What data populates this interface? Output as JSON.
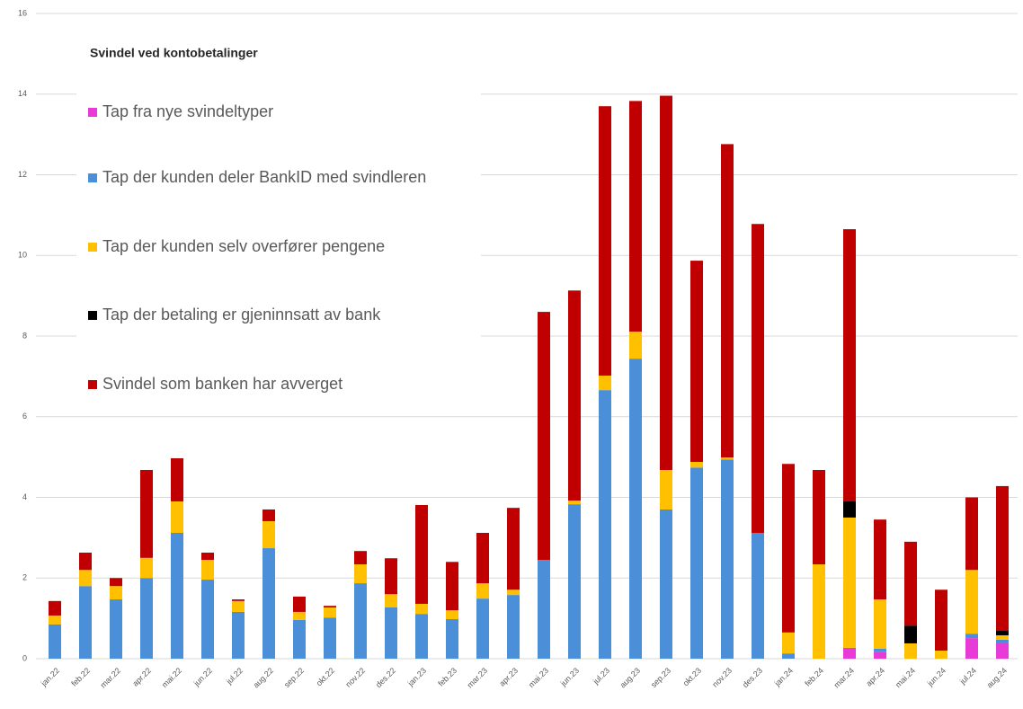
{
  "chart_data": {
    "type": "stacked_bar",
    "title": "Svindel ved kontobetalinger",
    "categories": [
      "jan.22",
      "feb.22",
      "mar.22",
      "apr.22",
      "mai.22",
      "jun.22",
      "jul.22",
      "aug.22",
      "sep.22",
      "okt.22",
      "nov.22",
      "des.22",
      "jan.23",
      "feb.23",
      "mar.23",
      "apr.23",
      "mai.23",
      "jun.23",
      "jul.23",
      "aug.23",
      "sep.23",
      "okt.23",
      "nov.23",
      "des.23",
      "jan.24",
      "feb.24",
      "mar.24",
      "apr.24",
      "mai.24",
      "jun.24",
      "jul.24",
      "aug.24"
    ],
    "series": [
      {
        "name": "Tap fra nye svindeltyper",
        "color": "#e83ad6",
        "values": [
          0,
          0,
          0,
          0,
          0,
          0,
          0,
          0,
          0,
          0,
          0,
          0,
          0,
          0,
          0,
          0,
          0,
          0,
          0,
          0,
          0,
          0,
          0,
          0,
          0,
          0,
          0.27,
          0.16,
          0,
          0,
          0.51,
          0.4
        ]
      },
      {
        "name": "Tap der kunden deler BankID med svindleren",
        "color": "#4a8fd8",
        "values": [
          0.85,
          1.8,
          1.47,
          2.0,
          3.12,
          1.96,
          1.16,
          2.74,
          0.96,
          1.02,
          1.87,
          1.27,
          1.11,
          0.98,
          1.49,
          1.58,
          2.45,
          3.83,
          6.66,
          7.44,
          3.7,
          4.74,
          4.94,
          3.12,
          0.13,
          0,
          0,
          0.09,
          0,
          0,
          0.11,
          0.07
        ]
      },
      {
        "name": "Tap der kunden selv overfører pengene",
        "color": "#ffc000",
        "values": [
          0.22,
          0.4,
          0.33,
          0.5,
          0.78,
          0.49,
          0.27,
          0.67,
          0.2,
          0.25,
          0.47,
          0.33,
          0.25,
          0.22,
          0.38,
          0.13,
          0,
          0.09,
          0.36,
          0.67,
          0.98,
          0.14,
          0.05,
          0,
          0.52,
          2.34,
          3.23,
          1.22,
          0.38,
          0.2,
          1.58,
          0.11
        ]
      },
      {
        "name": "Tap der betaling er gjeninnsatt av bank",
        "color": "#000000",
        "values": [
          0,
          0,
          0,
          0,
          0,
          0,
          0,
          0,
          0,
          0,
          0,
          0,
          0,
          0,
          0,
          0,
          0,
          0,
          0,
          0,
          0,
          0,
          0,
          0,
          0,
          0,
          0.4,
          0,
          0.44,
          0,
          0,
          0.11
        ]
      },
      {
        "name": "Svindel som banken har avverget",
        "color": "#c00000",
        "values": [
          0.36,
          0.43,
          0.2,
          2.18,
          1.07,
          0.18,
          0.04,
          0.29,
          0.38,
          0.04,
          0.33,
          0.89,
          2.45,
          1.2,
          1.25,
          2.03,
          6.15,
          5.21,
          6.68,
          5.72,
          9.28,
          4.99,
          7.77,
          7.66,
          4.18,
          2.34,
          6.75,
          1.98,
          2.08,
          1.51,
          1.8,
          3.59
        ]
      }
    ],
    "ylim": [
      0,
      16
    ],
    "yticks": [
      0,
      2,
      4,
      6,
      8,
      10,
      12,
      14,
      16
    ],
    "grid": true,
    "legend": "upper left"
  }
}
